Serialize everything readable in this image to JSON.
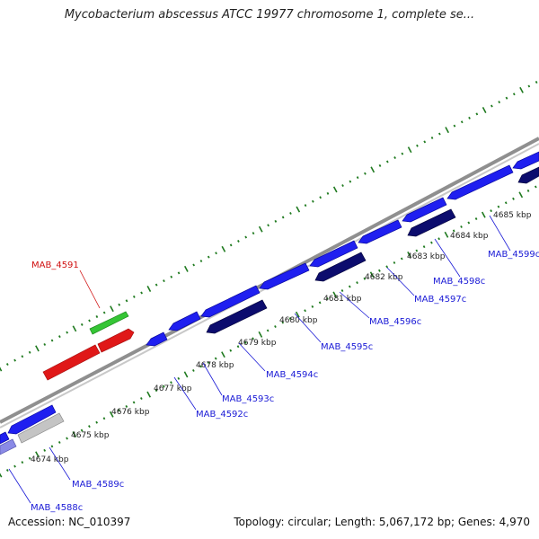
{
  "title": "Mycobacterium abscessus ATCC 19977 chromosome 1, complete se...",
  "footer": {
    "accession": "Accession: NC_010397",
    "topology": "Topology: circular; Length: 5,067,172 bp; Genes: 4,970"
  },
  "colors": {
    "background": "#ffffff",
    "backbone": "#8f8f8f",
    "gene_blue": "#1f1ff0",
    "gene_navy": "#0c0c6e",
    "gene_red": "#e01818",
    "gene_green": "#35c535",
    "gene_grey": "#c4c4c4",
    "gene_lavender": "#8a8ae6",
    "tick": "#1f7a1f",
    "label_blue": "#1a1ad6",
    "label_red": "#d01010"
  },
  "scale_labels": [
    "4674 kbp",
    "4675 kbp",
    "4676 kbp",
    "4677 kbp",
    "4678 kbp",
    "4679 kbp",
    "4680 kbp",
    "4681 kbp",
    "4682 kbp",
    "4683 kbp",
    "4684 kbp",
    "4685 kbp"
  ],
  "gene_labels": [
    {
      "text": "MAB_4588c",
      "color": "blue"
    },
    {
      "text": "MAB_4589c",
      "color": "blue"
    },
    {
      "text": "MAB_4591",
      "color": "red"
    },
    {
      "text": "MAB_4592c",
      "color": "blue"
    },
    {
      "text": "MAB_4593c",
      "color": "blue"
    },
    {
      "text": "MAB_4594c",
      "color": "blue"
    },
    {
      "text": "MAB_4595c",
      "color": "blue"
    },
    {
      "text": "MAB_4596c",
      "color": "blue"
    },
    {
      "text": "MAB_4597c",
      "color": "blue"
    },
    {
      "text": "MAB_4598c",
      "color": "blue"
    },
    {
      "text": "MAB_4599c",
      "color": "blue"
    }
  ]
}
